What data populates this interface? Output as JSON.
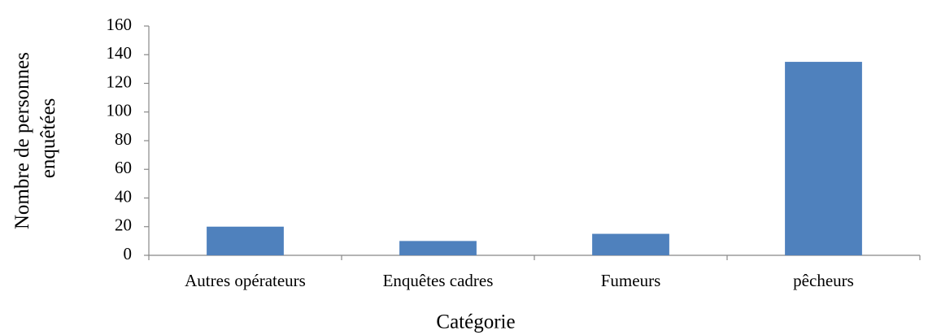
{
  "chart_data": {
    "type": "bar",
    "xlabel": "Catégorie",
    "ylabel": [
      "Nombre de personnes",
      "enquêtées"
    ],
    "categories": [
      "Autres opérateurs",
      "Enquêtes cadres",
      "Fumeurs",
      "pêcheurs"
    ],
    "values": [
      20,
      10,
      15,
      135
    ],
    "color": "#4f81bd",
    "ylim": [
      0,
      160
    ],
    "yticks": [
      0,
      20,
      40,
      60,
      80,
      100,
      120,
      140,
      160
    ],
    "grid": false
  }
}
